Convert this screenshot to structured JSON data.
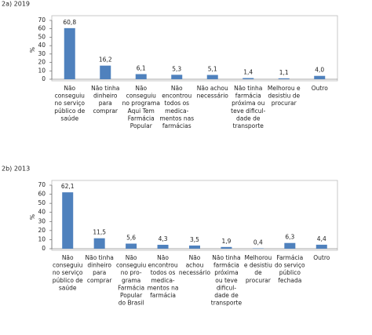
{
  "chart_data": [
    {
      "type": "bar",
      "title": "2a) 2019",
      "ylabel": "%",
      "color": "#4f81bd",
      "categories": [
        [
          "Não",
          "conseguiu",
          "no serviço",
          "público de",
          "saúde"
        ],
        [
          "Não tinha",
          "dinheiro",
          "para",
          "comprar"
        ],
        [
          "Não",
          "conseguiu",
          "no programa",
          "Aqui Tem",
          "Farmácia",
          "Popular"
        ],
        [
          "Não",
          "encontrou",
          "todos os",
          "medica-",
          "mentos nas",
          "farmácias"
        ],
        [
          "Não achou",
          "necessário"
        ],
        [
          "Não tinha",
          "farmácia",
          "próxima ou",
          "teve dificul-",
          "dade de",
          "transporte"
        ],
        [
          "Melhorou e",
          "desistiu de",
          "procurar"
        ],
        [
          "Outro"
        ]
      ],
      "values": [
        60.8,
        16.2,
        6.1,
        5.3,
        5.1,
        1.4,
        1.1,
        4.0
      ],
      "value_labels": [
        "60,8",
        "16,2",
        "6,1",
        "5,3",
        "5,1",
        "1,4",
        "1,1",
        "4,0"
      ],
      "ylim": [
        0,
        70
      ],
      "yticks": [
        0,
        10,
        20,
        30,
        40,
        50,
        60,
        70
      ]
    },
    {
      "type": "bar",
      "title": "2b) 2013",
      "ylabel": "%",
      "color": "#4f81bd",
      "categories": [
        [
          "Não",
          "conseguiu",
          "no serviço",
          "público de",
          "saúde"
        ],
        [
          "Não tinha",
          "dinheiro",
          "para",
          "comprar"
        ],
        [
          "Não",
          "conseguiu",
          "no pro-",
          "grama",
          "Farmácia",
          "Popular",
          "do Brasil"
        ],
        [
          "Não",
          "encontrou",
          "todos os",
          "medica-",
          "mentos na",
          "farmácia"
        ],
        [
          "Não",
          "achou",
          "necessário"
        ],
        [
          "Não tinha",
          "farmácia",
          "próxima",
          "ou teve",
          "dificul-",
          "dade de",
          "transporte"
        ],
        [
          "Melhorou",
          "e desistiu",
          "de",
          "procurar"
        ],
        [
          "Farmácia",
          "do serviço",
          "público",
          "fechada"
        ],
        [
          "Outro"
        ]
      ],
      "values": [
        62.1,
        11.5,
        5.6,
        4.3,
        3.5,
        1.9,
        0.4,
        6.3,
        4.4
      ],
      "value_labels": [
        "62,1",
        "11,5",
        "5,6",
        "4,3",
        "3,5",
        "1,9",
        "0,4",
        "6,3",
        "4,4"
      ],
      "ylim": [
        0,
        70
      ],
      "yticks": [
        0,
        10,
        20,
        30,
        40,
        50,
        60,
        70
      ]
    }
  ]
}
